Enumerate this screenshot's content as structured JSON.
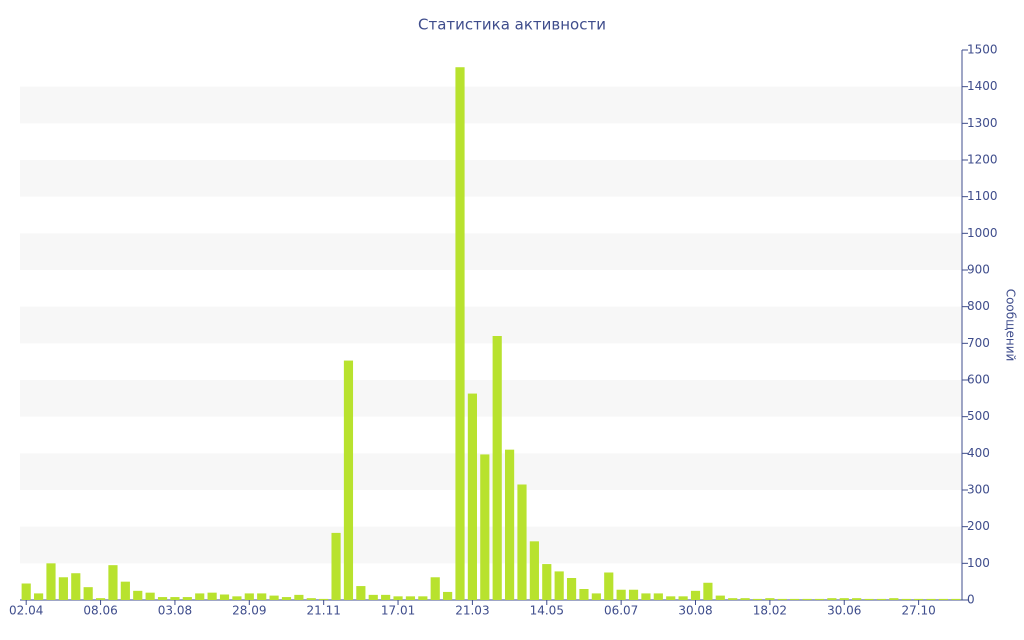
{
  "chart_data": {
    "type": "bar",
    "title": "Статистика активности",
    "y_axis_label": "Сообщений",
    "categories": [
      "02.04",
      null,
      null,
      null,
      null,
      null,
      "08.06",
      null,
      null,
      null,
      null,
      null,
      "03.08",
      null,
      null,
      null,
      null,
      null,
      "28.09",
      null,
      null,
      null,
      null,
      null,
      "21.11",
      null,
      null,
      null,
      null,
      null,
      "17.01",
      null,
      null,
      null,
      null,
      null,
      "21.03",
      null,
      null,
      null,
      null,
      null,
      "14.05",
      null,
      null,
      null,
      null,
      null,
      "06.07",
      null,
      null,
      null,
      null,
      null,
      "30.08",
      null,
      null,
      null,
      null,
      null,
      "18.02",
      null,
      null,
      null,
      null,
      null,
      "30.06",
      null,
      null,
      null,
      null,
      null,
      "27.10",
      null,
      null,
      null
    ],
    "values": [
      45,
      18,
      100,
      62,
      73,
      35,
      5,
      95,
      50,
      25,
      20,
      8,
      8,
      8,
      18,
      20,
      15,
      10,
      18,
      18,
      12,
      8,
      14,
      5,
      3,
      183,
      653,
      38,
      14,
      14,
      10,
      10,
      10,
      62,
      22,
      1453,
      563,
      397,
      720,
      410,
      315,
      160,
      98,
      78,
      60,
      30,
      18,
      75,
      28,
      28,
      18,
      18,
      10,
      10,
      25,
      47,
      12,
      5,
      5,
      3,
      5,
      3,
      3,
      3,
      3,
      5,
      5,
      5,
      3,
      3,
      5,
      3,
      3,
      3,
      3,
      3
    ],
    "color": "#b8e22e",
    "ylim": [
      0,
      1500
    ],
    "yticks": [
      0,
      100,
      200,
      300,
      400,
      500,
      600,
      700,
      800,
      900,
      1000,
      1100,
      1200,
      1300,
      1400,
      1500
    ],
    "y_axis_side": "right",
    "grid": "alternate-bands"
  }
}
